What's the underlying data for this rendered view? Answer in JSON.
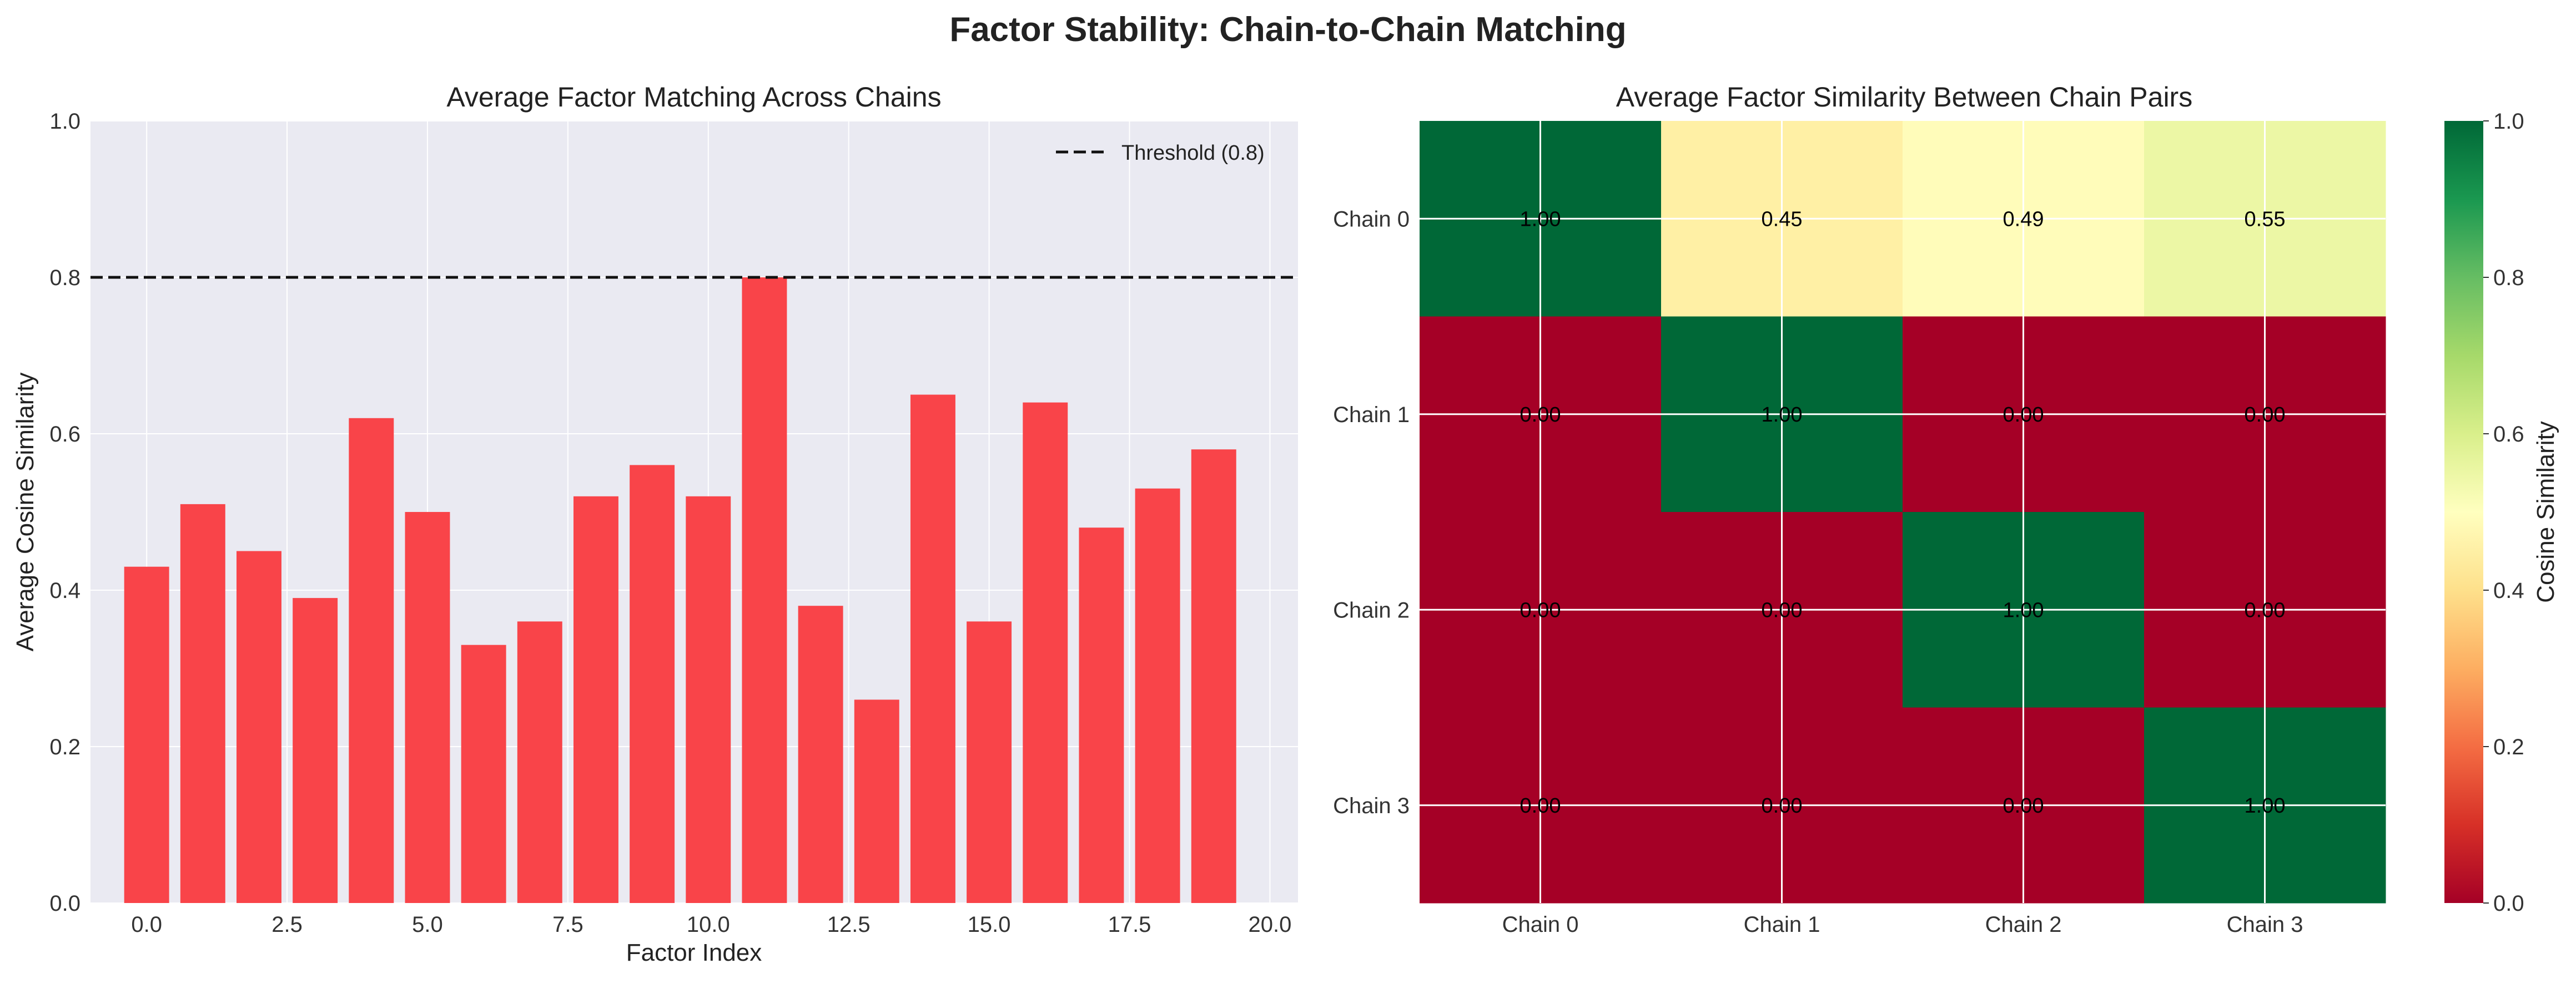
{
  "figure": {
    "suptitle": "Factor Stability: Chain-to-Chain Matching"
  },
  "colors": {
    "bar": "#f94449",
    "axes_bg": "#eaeaf2",
    "threshold": "#111111",
    "cmap_RdYlGn": [
      "#a50026",
      "#d73027",
      "#f46d43",
      "#fdae61",
      "#fee08b",
      "#ffffbf",
      "#d9ef8b",
      "#a6d96a",
      "#66bd63",
      "#1a9850",
      "#006837"
    ]
  },
  "chart_data": [
    {
      "type": "bar",
      "title": "Average Factor Matching Across Chains",
      "xlabel": "Factor Index",
      "ylabel": "Average Cosine Similarity",
      "x": [
        0,
        1,
        2,
        3,
        4,
        5,
        6,
        7,
        8,
        9,
        10,
        11,
        12,
        13,
        14,
        15,
        16,
        17,
        18,
        19
      ],
      "values": [
        0.43,
        0.51,
        0.45,
        0.39,
        0.62,
        0.5,
        0.33,
        0.36,
        0.52,
        0.56,
        0.52,
        0.8,
        0.38,
        0.26,
        0.65,
        0.36,
        0.64,
        0.48,
        0.53,
        0.58
      ],
      "xlim": [
        -1,
        20.5
      ],
      "ylim": [
        0,
        1.0
      ],
      "xticks": [
        0,
        2.5,
        5,
        7.5,
        10,
        12.5,
        15,
        17.5,
        20
      ],
      "xtick_labels": [
        "0.0",
        "2.5",
        "5.0",
        "7.5",
        "10.0",
        "12.5",
        "15.0",
        "17.5",
        "20.0"
      ],
      "yticks": [
        0,
        0.2,
        0.4,
        0.6,
        0.8,
        1.0
      ],
      "ytick_labels": [
        "0.0",
        "0.2",
        "0.4",
        "0.6",
        "0.8",
        "1.0"
      ],
      "threshold": {
        "value": 0.8,
        "label": "Threshold (0.8)"
      },
      "legend_position": "top-right",
      "grid": true
    },
    {
      "type": "heatmap",
      "title": "Average Factor Similarity Between Chain Pairs",
      "row_labels": [
        "Chain 0",
        "Chain 1",
        "Chain 2",
        "Chain 3"
      ],
      "col_labels": [
        "Chain 0",
        "Chain 1",
        "Chain 2",
        "Chain 3"
      ],
      "values": [
        [
          1.0,
          0.45,
          0.49,
          0.55
        ],
        [
          0.0,
          1.0,
          0.0,
          0.0
        ],
        [
          0.0,
          0.0,
          1.0,
          0.0
        ],
        [
          0.0,
          0.0,
          0.0,
          1.0
        ]
      ],
      "value_labels": [
        [
          "1.00",
          "0.45",
          "0.49",
          "0.55"
        ],
        [
          "0.00",
          "1.00",
          "0.00",
          "0.00"
        ],
        [
          "0.00",
          "0.00",
          "1.00",
          "0.00"
        ],
        [
          "0.00",
          "0.00",
          "0.00",
          "1.00"
        ]
      ],
      "colorbar": {
        "label": "Cosine Similarity",
        "range": [
          0,
          1.0
        ],
        "ticks": [
          0,
          0.2,
          0.4,
          0.6,
          0.8,
          1.0
        ],
        "tick_labels": [
          "0.0",
          "0.2",
          "0.4",
          "0.6",
          "0.8",
          "1.0"
        ]
      },
      "grid": true
    }
  ]
}
